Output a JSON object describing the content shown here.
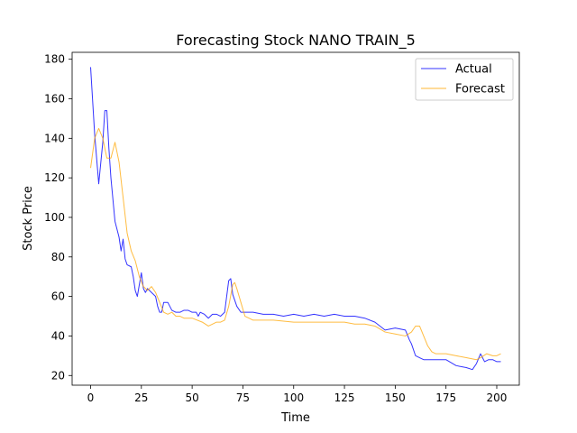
{
  "chart_data": {
    "type": "line",
    "title": "Forecasting Stock NANO TRAIN_5",
    "xlabel": "Time",
    "ylabel": "Stock Price",
    "xlim": [
      -9.1,
      211.1
    ],
    "ylim": [
      15.1,
      183.5
    ],
    "xticks": [
      0,
      25,
      50,
      75,
      100,
      125,
      150,
      175,
      200
    ],
    "yticks": [
      20,
      40,
      60,
      80,
      100,
      120,
      140,
      160,
      180
    ],
    "grid": false,
    "legend_position": "top-right",
    "series": [
      {
        "name": "Actual",
        "color": "#0000ff",
        "points": [
          [
            0,
            176
          ],
          [
            2,
            142
          ],
          [
            4,
            117
          ],
          [
            6,
            138
          ],
          [
            7,
            154
          ],
          [
            8,
            154
          ],
          [
            9,
            135
          ],
          [
            10,
            120
          ],
          [
            12,
            98
          ],
          [
            14,
            90
          ],
          [
            15,
            83
          ],
          [
            16,
            89
          ],
          [
            17,
            79
          ],
          [
            18,
            76
          ],
          [
            20,
            75
          ],
          [
            21,
            70
          ],
          [
            22,
            63
          ],
          [
            23,
            60
          ],
          [
            24,
            66
          ],
          [
            25,
            72
          ],
          [
            26,
            64
          ],
          [
            27,
            62
          ],
          [
            28,
            64
          ],
          [
            30,
            62
          ],
          [
            32,
            60
          ],
          [
            33,
            55
          ],
          [
            34,
            52
          ],
          [
            35,
            52
          ],
          [
            36,
            57
          ],
          [
            38,
            57
          ],
          [
            40,
            53
          ],
          [
            42,
            52
          ],
          [
            44,
            52
          ],
          [
            46,
            53
          ],
          [
            48,
            53
          ],
          [
            50,
            52
          ],
          [
            52,
            52
          ],
          [
            53,
            50
          ],
          [
            54,
            52
          ],
          [
            56,
            51
          ],
          [
            58,
            49
          ],
          [
            60,
            51
          ],
          [
            62,
            51
          ],
          [
            64,
            50
          ],
          [
            66,
            52
          ],
          [
            67,
            60
          ],
          [
            68,
            68
          ],
          [
            69,
            69
          ],
          [
            70,
            61
          ],
          [
            72,
            55
          ],
          [
            74,
            52
          ],
          [
            76,
            52
          ],
          [
            80,
            52
          ],
          [
            85,
            51
          ],
          [
            90,
            51
          ],
          [
            95,
            50
          ],
          [
            100,
            51
          ],
          [
            105,
            50
          ],
          [
            110,
            51
          ],
          [
            115,
            50
          ],
          [
            120,
            51
          ],
          [
            125,
            50
          ],
          [
            130,
            50
          ],
          [
            135,
            49
          ],
          [
            140,
            47
          ],
          [
            145,
            43
          ],
          [
            150,
            44
          ],
          [
            155,
            43
          ],
          [
            157,
            38
          ],
          [
            158,
            36
          ],
          [
            160,
            30
          ],
          [
            162,
            29
          ],
          [
            164,
            28
          ],
          [
            166,
            28
          ],
          [
            170,
            28
          ],
          [
            175,
            28
          ],
          [
            180,
            25
          ],
          [
            185,
            24
          ],
          [
            188,
            23
          ],
          [
            190,
            26
          ],
          [
            192,
            31
          ],
          [
            194,
            27
          ],
          [
            196,
            28
          ],
          [
            198,
            28
          ],
          [
            200,
            27
          ],
          [
            202,
            27
          ]
        ]
      },
      {
        "name": "Forecast",
        "color": "#ffa500",
        "points": [
          [
            0,
            125
          ],
          [
            2,
            140
          ],
          [
            4,
            145
          ],
          [
            6,
            140
          ],
          [
            8,
            130
          ],
          [
            10,
            130
          ],
          [
            12,
            138
          ],
          [
            14,
            128
          ],
          [
            16,
            110
          ],
          [
            18,
            92
          ],
          [
            20,
            83
          ],
          [
            22,
            78
          ],
          [
            24,
            70
          ],
          [
            26,
            65
          ],
          [
            28,
            63
          ],
          [
            30,
            65
          ],
          [
            32,
            62
          ],
          [
            34,
            57
          ],
          [
            36,
            52
          ],
          [
            38,
            51
          ],
          [
            40,
            52
          ],
          [
            42,
            50
          ],
          [
            44,
            50
          ],
          [
            46,
            49
          ],
          [
            50,
            49
          ],
          [
            55,
            47
          ],
          [
            58,
            45
          ],
          [
            60,
            46
          ],
          [
            62,
            47
          ],
          [
            64,
            47
          ],
          [
            66,
            48
          ],
          [
            68,
            55
          ],
          [
            70,
            66
          ],
          [
            71,
            67
          ],
          [
            72,
            64
          ],
          [
            74,
            57
          ],
          [
            76,
            50
          ],
          [
            78,
            49
          ],
          [
            80,
            48
          ],
          [
            90,
            48
          ],
          [
            100,
            47
          ],
          [
            110,
            47
          ],
          [
            120,
            47
          ],
          [
            125,
            47
          ],
          [
            130,
            46
          ],
          [
            135,
            46
          ],
          [
            140,
            45
          ],
          [
            145,
            42
          ],
          [
            150,
            41
          ],
          [
            155,
            40
          ],
          [
            158,
            42
          ],
          [
            160,
            45
          ],
          [
            162,
            45
          ],
          [
            164,
            40
          ],
          [
            166,
            35
          ],
          [
            168,
            32
          ],
          [
            170,
            31
          ],
          [
            175,
            31
          ],
          [
            180,
            30
          ],
          [
            185,
            29
          ],
          [
            190,
            28
          ],
          [
            192,
            29
          ],
          [
            195,
            31
          ],
          [
            198,
            30
          ],
          [
            200,
            30
          ],
          [
            202,
            31
          ]
        ]
      }
    ]
  }
}
